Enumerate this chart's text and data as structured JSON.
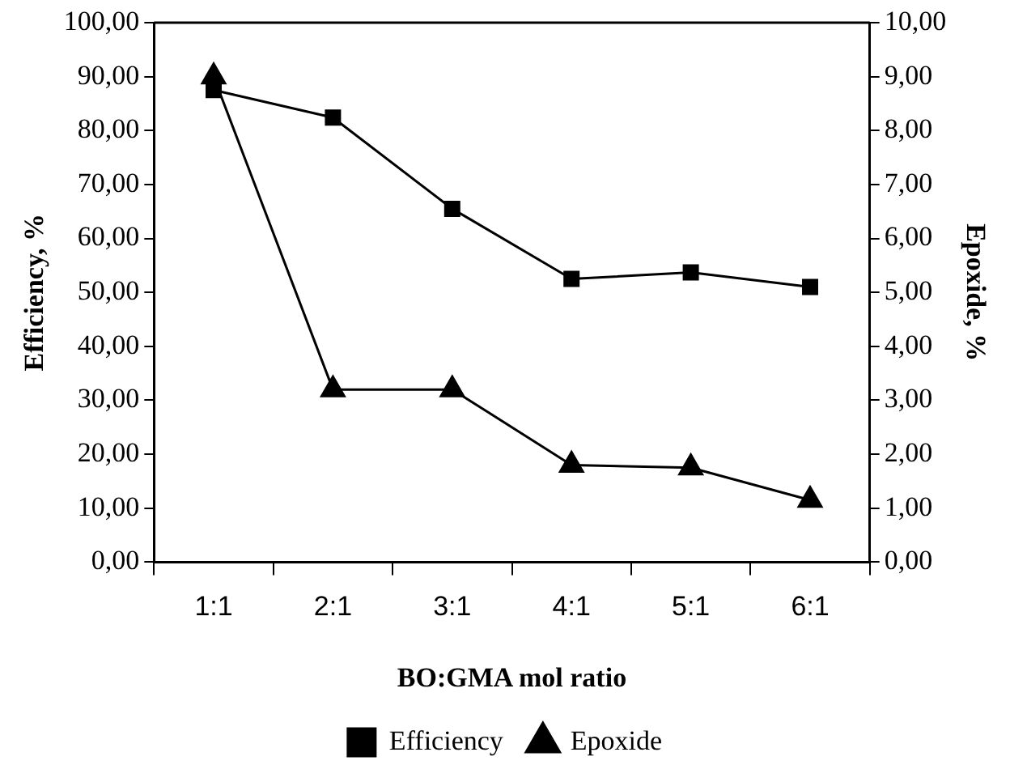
{
  "chart_data": {
    "type": "line",
    "xlabel": "BO:GMA mol ratio",
    "ylabel": "Efficiency, %",
    "y2label": "Epoxide, %",
    "categories": [
      "1:1",
      "2:1",
      "3:1",
      "4:1",
      "5:1",
      "6:1"
    ],
    "series": [
      {
        "name": "Efficiency",
        "color": "#000000",
        "marker": "square",
        "values": [
          87.5,
          82.4,
          65.5,
          52.5,
          53.7,
          51.0
        ]
      },
      {
        "name": "Epoxide",
        "color": "#000000",
        "marker": "triangle",
        "axis": "y2",
        "values": [
          9.0,
          3.2,
          3.2,
          1.8,
          1.75,
          1.15
        ]
      }
    ],
    "ylim": [
      0,
      100
    ],
    "yticks": [
      {
        "value": 0,
        "label": "0,00"
      },
      {
        "value": 10,
        "label": "10,00"
      },
      {
        "value": 20,
        "label": "20,00"
      },
      {
        "value": 30,
        "label": "30,00"
      },
      {
        "value": 40,
        "label": "40,00"
      },
      {
        "value": 50,
        "label": "50,00"
      },
      {
        "value": 60,
        "label": "60,00"
      },
      {
        "value": 70,
        "label": "70,00"
      },
      {
        "value": 80,
        "label": "80,00"
      },
      {
        "value": 90,
        "label": "90,00"
      },
      {
        "value": 100,
        "label": "100,00"
      }
    ],
    "y2lim": [
      0,
      10
    ],
    "y2ticks": [
      {
        "value": 0,
        "label": "0,00"
      },
      {
        "value": 1,
        "label": "1,00"
      },
      {
        "value": 2,
        "label": "2,00"
      },
      {
        "value": 3,
        "label": "3,00"
      },
      {
        "value": 4,
        "label": "4,00"
      },
      {
        "value": 5,
        "label": "5,00"
      },
      {
        "value": 6,
        "label": "6,00"
      },
      {
        "value": 7,
        "label": "7,00"
      },
      {
        "value": 8,
        "label": "8,00"
      },
      {
        "value": 9,
        "label": "9,00"
      },
      {
        "value": 10,
        "label": "10,00"
      }
    ],
    "grid": false,
    "legend": "bottom",
    "line_style": "solid"
  }
}
